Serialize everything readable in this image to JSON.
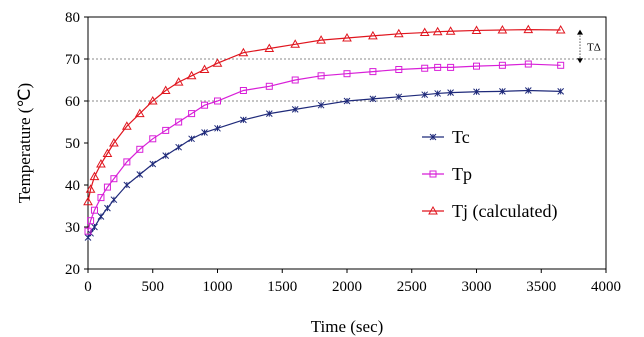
{
  "chart_data": {
    "type": "line",
    "xlabel": "Time (sec)",
    "ylabel": "Temperature (℃)",
    "xlim": [
      0,
      4000
    ],
    "ylim": [
      20,
      80
    ],
    "xticks": [
      0,
      500,
      1000,
      1500,
      2000,
      2500,
      3000,
      3500,
      4000
    ],
    "yticks": [
      20,
      30,
      40,
      50,
      60,
      70,
      80
    ],
    "reference_lines_y": [
      60,
      70,
      80
    ],
    "legend_position": "center-right",
    "annotation": {
      "text": "TΔ",
      "from_y": 77,
      "to_y": 69
    },
    "series": [
      {
        "name": "Tc",
        "color": "#1f2a7a",
        "marker": "star",
        "x": [
          0,
          20,
          50,
          100,
          150,
          200,
          300,
          400,
          500,
          600,
          700,
          800,
          900,
          1000,
          1200,
          1400,
          1600,
          1800,
          2000,
          2200,
          2400,
          2600,
          2700,
          2800,
          3000,
          3200,
          3400,
          3650
        ],
        "y": [
          27.5,
          28.5,
          30,
          32.5,
          34.5,
          36.5,
          40,
          42.5,
          45,
          47,
          49,
          51,
          52.5,
          53.5,
          55.5,
          57,
          58,
          59,
          60,
          60.5,
          61,
          61.5,
          61.8,
          62,
          62.2,
          62.3,
          62.5,
          62.3
        ]
      },
      {
        "name": "Tp",
        "color": "#d81fd8",
        "marker": "square",
        "x": [
          0,
          20,
          50,
          100,
          150,
          200,
          300,
          400,
          500,
          600,
          700,
          800,
          900,
          1000,
          1200,
          1400,
          1600,
          1800,
          2000,
          2200,
          2400,
          2600,
          2700,
          2800,
          3000,
          3200,
          3400,
          3650
        ],
        "y": [
          29,
          31.5,
          34,
          37,
          39.5,
          41.5,
          45.5,
          48.5,
          51,
          53,
          55,
          57,
          59,
          60,
          62.5,
          63.5,
          65,
          66,
          66.5,
          67,
          67.5,
          67.8,
          68,
          68,
          68.3,
          68.5,
          68.8,
          68.5
        ]
      },
      {
        "name": "Tj (calculated)",
        "color": "#e0151e",
        "marker": "triangle",
        "x": [
          0,
          20,
          50,
          100,
          150,
          200,
          300,
          400,
          500,
          600,
          700,
          800,
          900,
          1000,
          1200,
          1400,
          1600,
          1800,
          2000,
          2200,
          2400,
          2600,
          2700,
          2800,
          3000,
          3200,
          3400,
          3650
        ],
        "y": [
          36,
          39,
          42,
          45,
          47.5,
          50,
          54,
          57,
          60,
          62.5,
          64.5,
          66,
          67.5,
          69,
          71.5,
          72.5,
          73.5,
          74.5,
          75,
          75.5,
          76,
          76.3,
          76.5,
          76.6,
          76.8,
          76.9,
          77,
          76.9
        ]
      }
    ]
  }
}
